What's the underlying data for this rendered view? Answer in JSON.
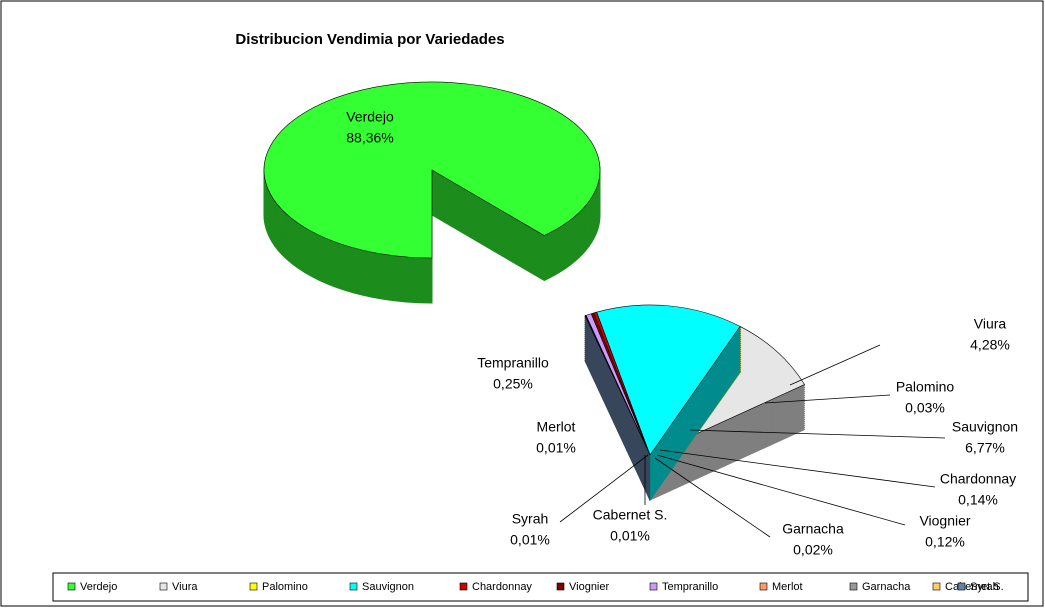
{
  "chart_data": {
    "type": "pie",
    "title": "Distribucion Vendimia por Variedades",
    "categories": [
      "Verdejo",
      "Viura",
      "Palomino",
      "Sauvignon",
      "Chardonnay",
      "Viognier",
      "Tempranillo",
      "Merlot",
      "Garnacha",
      "Cabernet S.",
      "Syrah"
    ],
    "values": [
      88.36,
      4.28,
      0.03,
      6.77,
      0.14,
      0.12,
      0.25,
      0.01,
      0.02,
      0.01,
      0.01
    ],
    "value_labels": [
      "88,36%",
      "4,28%",
      "0,03%",
      "6,77%",
      "0,14%",
      "0,12%",
      "0,25%",
      "0,01%",
      "0,02%",
      "0,01%",
      "0,01%"
    ],
    "colors": [
      "#33ff33",
      "#e6e6e6",
      "#ffff00",
      "#00ffff",
      "#cc0000",
      "#800000",
      "#cc99ff",
      "#ff9966",
      "#999999",
      "#ffcc66",
      "#6680a6"
    ],
    "legend": "bottom"
  }
}
